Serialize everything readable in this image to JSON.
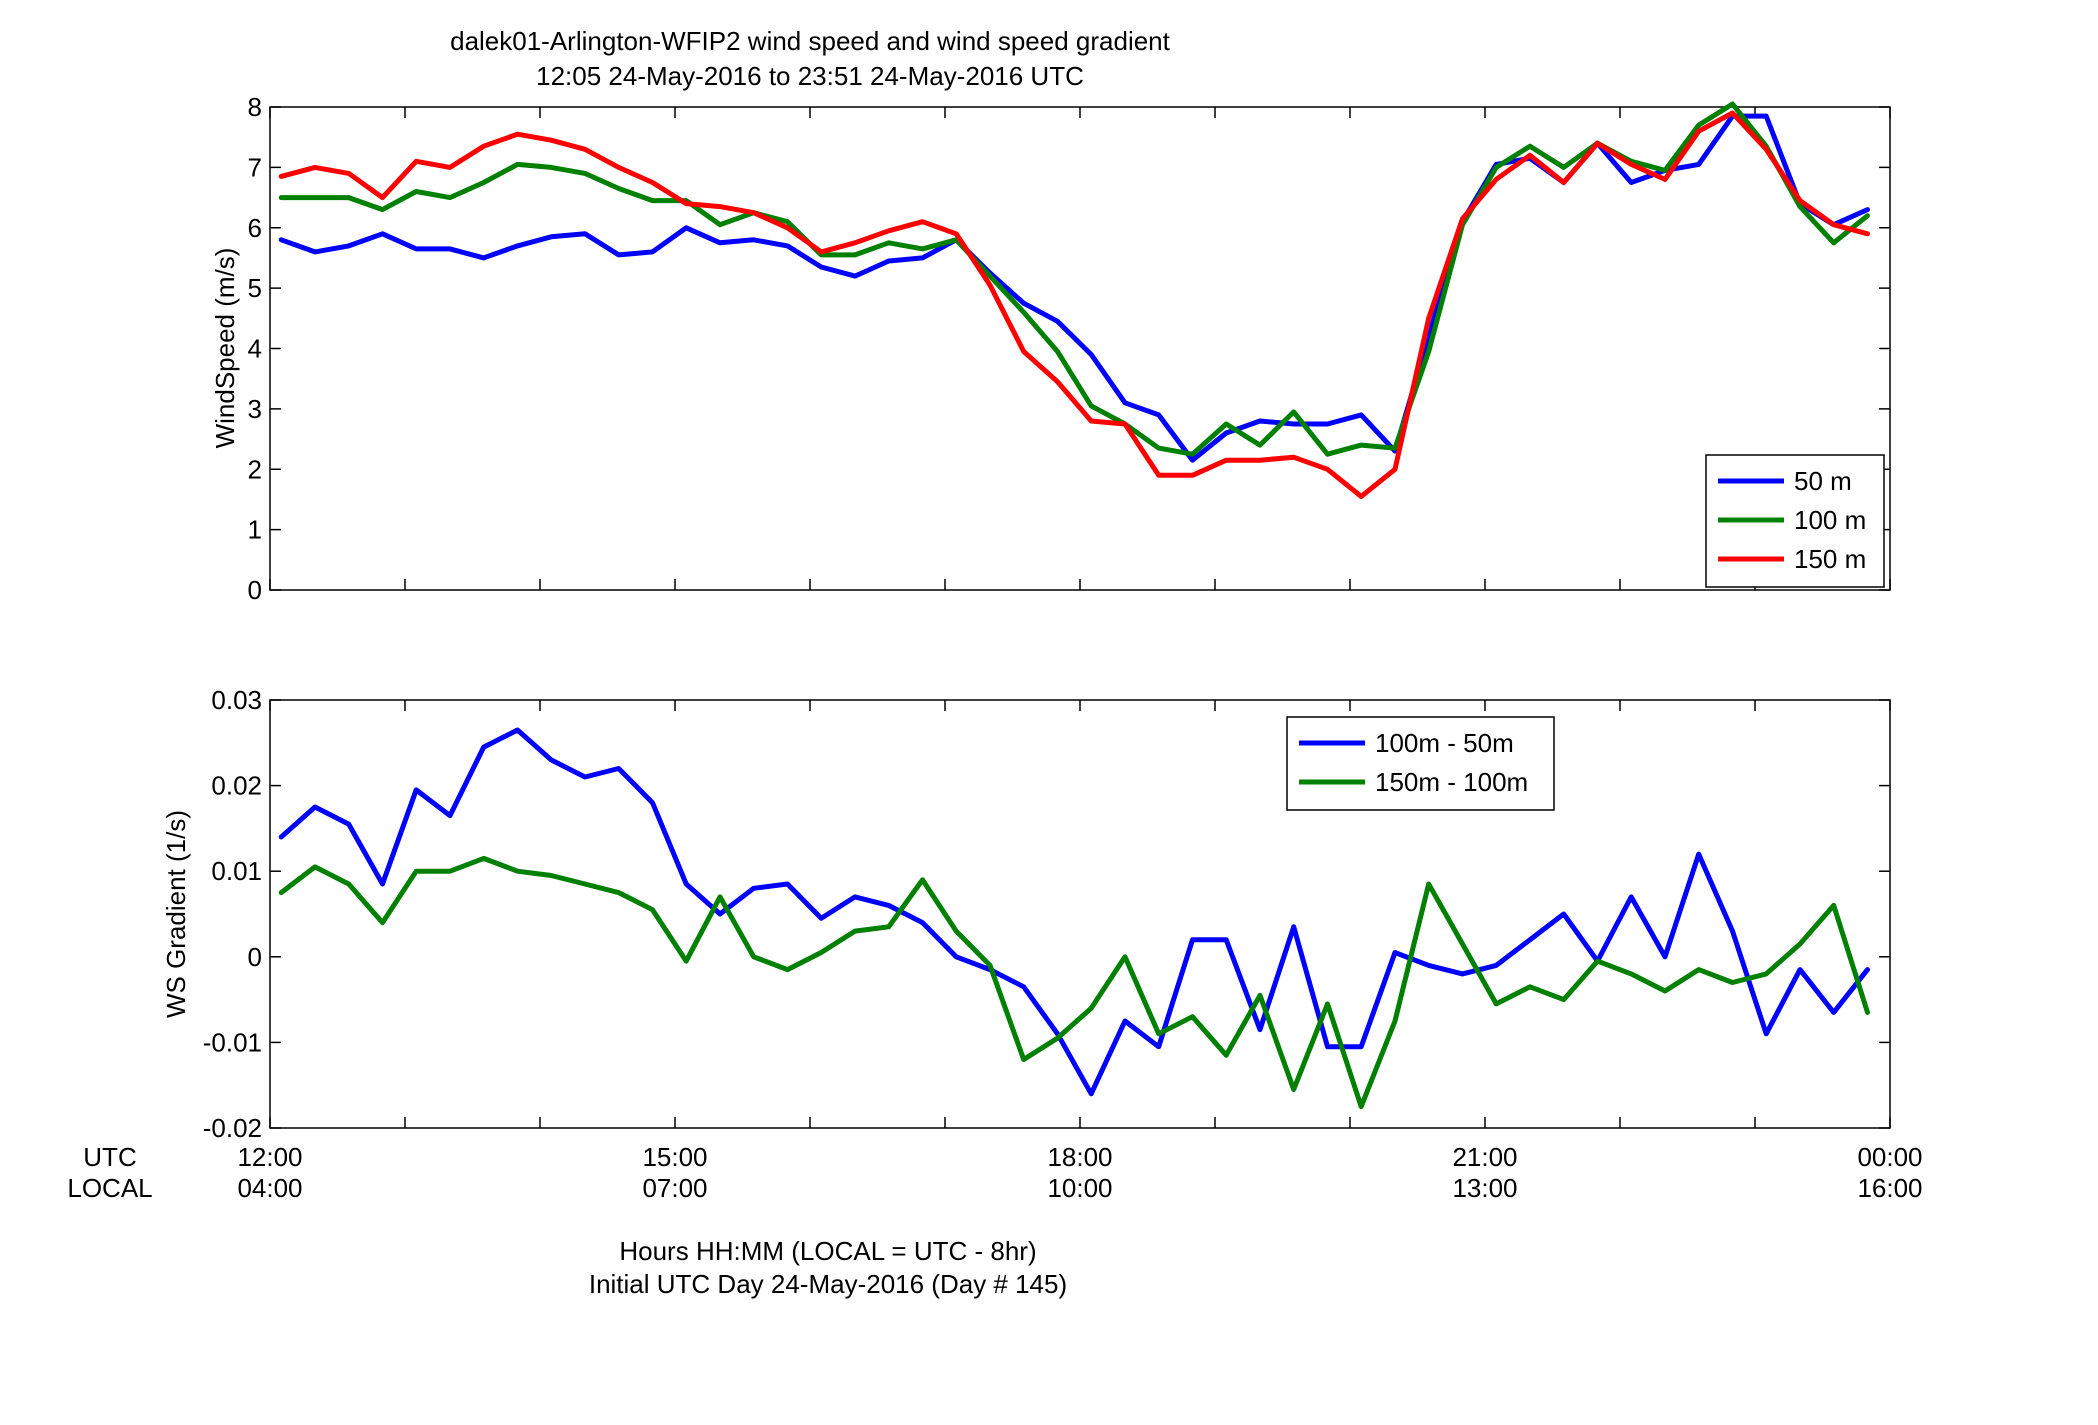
{
  "figure": {
    "title_line1": "dalek01-Arlington-WFIP2  wind speed and wind speed gradient",
    "title_line2": "12:05 24-May-2016 to 23:51 24-May-2016  UTC",
    "utc_label": "UTC",
    "local_label": "LOCAL",
    "utc_ticks": [
      "12:00",
      "15:00",
      "18:00",
      "21:00",
      "00:00"
    ],
    "local_ticks": [
      "04:00",
      "07:00",
      "10:00",
      "13:00",
      "16:00"
    ],
    "xlabel_line1": "Hours HH:MM  (LOCAL = UTC - 8hr)",
    "xlabel_line2": "Initial UTC Day 24-May-2016 (Day # 145)"
  },
  "chart_data": [
    {
      "type": "line",
      "title": "",
      "xlabel": "",
      "ylabel": "WindSpeed (m/s)",
      "xlim": [
        12,
        24
      ],
      "ylim": [
        0,
        8
      ],
      "yticks": [
        0,
        1,
        2,
        3,
        4,
        5,
        6,
        7,
        8
      ],
      "ytick_labels": [
        "0",
        "1",
        "2",
        "3",
        "4",
        "5",
        "6",
        "7",
        "8"
      ],
      "x_start_hour": 12.083,
      "x_step_hours": 0.25,
      "legend_position": "bottom-right",
      "series": [
        {
          "name": "50 m",
          "color": "#0000ff",
          "values": [
            5.8,
            5.6,
            5.7,
            5.9,
            5.65,
            5.65,
            5.5,
            5.7,
            5.85,
            5.9,
            5.55,
            5.6,
            6.0,
            5.75,
            5.8,
            5.7,
            5.35,
            5.2,
            5.45,
            5.5,
            5.8,
            5.25,
            4.75,
            4.45,
            3.9,
            3.1,
            2.9,
            2.15,
            2.6,
            2.8,
            2.75,
            2.75,
            2.9,
            2.3,
            4.2,
            6.1,
            7.05,
            7.15,
            6.75,
            7.4,
            6.75,
            6.95,
            7.05,
            7.85,
            7.85,
            6.4,
            6.05,
            6.3
          ]
        },
        {
          "name": "100 m",
          "color": "#008000",
          "values": [
            6.5,
            6.5,
            6.5,
            6.3,
            6.6,
            6.5,
            6.75,
            7.05,
            7.0,
            6.9,
            6.65,
            6.45,
            6.45,
            6.05,
            6.25,
            6.1,
            5.55,
            5.55,
            5.75,
            5.65,
            5.8,
            5.2,
            4.6,
            3.95,
            3.05,
            2.75,
            2.35,
            2.25,
            2.75,
            2.4,
            2.95,
            2.25,
            2.4,
            2.35,
            3.95,
            6.05,
            7.0,
            7.35,
            7.0,
            7.4,
            7.1,
            6.95,
            7.7,
            8.05,
            7.35,
            6.35,
            5.75,
            6.2
          ]
        },
        {
          "name": "150 m",
          "color": "#ff0000",
          "values": [
            6.85,
            7.0,
            6.9,
            6.5,
            7.1,
            7.0,
            7.35,
            7.55,
            7.45,
            7.3,
            7.0,
            6.75,
            6.4,
            6.35,
            6.25,
            6.0,
            5.6,
            5.75,
            5.95,
            6.1,
            5.9,
            5.05,
            3.95,
            3.45,
            2.8,
            2.75,
            1.9,
            1.9,
            2.15,
            2.15,
            2.2,
            2.0,
            1.55,
            2.0,
            4.5,
            6.15,
            6.8,
            7.2,
            6.75,
            7.4,
            7.05,
            6.8,
            7.6,
            7.9,
            7.3,
            6.45,
            6.05,
            5.9
          ]
        }
      ]
    },
    {
      "type": "line",
      "title": "",
      "xlabel": "",
      "ylabel": "WS Gradient (1/s)",
      "xlim": [
        12,
        24
      ],
      "ylim": [
        -0.02,
        0.03
      ],
      "yticks": [
        -0.02,
        -0.01,
        0,
        0.01,
        0.02,
        0.03
      ],
      "ytick_labels": [
        "-0.02",
        "-0.01",
        "0",
        "0.01",
        "0.02",
        "0.03"
      ],
      "x_start_hour": 12.083,
      "x_step_hours": 0.25,
      "legend_position": "top-center",
      "series": [
        {
          "name": "100m - 50m",
          "color": "#0000ff",
          "values": [
            0.014,
            0.0175,
            0.0155,
            0.0085,
            0.0195,
            0.0165,
            0.0245,
            0.0265,
            0.023,
            0.021,
            0.022,
            0.018,
            0.0085,
            0.005,
            0.008,
            0.0085,
            0.0045,
            0.007,
            0.006,
            0.004,
            0.0,
            -0.0015,
            -0.0035,
            -0.009,
            -0.016,
            -0.0075,
            -0.0105,
            0.002,
            0.002,
            -0.0085,
            0.0035,
            -0.0105,
            -0.0105,
            0.0005,
            -0.001,
            -0.002,
            -0.001,
            0.002,
            0.005,
            -0.0005,
            0.007,
            0.0,
            0.012,
            0.003,
            -0.009,
            -0.0015,
            -0.0065,
            -0.0015
          ]
        },
        {
          "name": "150m - 100m",
          "color": "#008000",
          "values": [
            0.0075,
            0.0105,
            0.0085,
            0.004,
            0.01,
            0.01,
            0.0115,
            0.01,
            0.0095,
            0.0085,
            0.0075,
            0.0055,
            -0.0005,
            0.007,
            0.0,
            -0.0015,
            0.0005,
            0.003,
            0.0035,
            0.009,
            0.003,
            -0.001,
            -0.012,
            -0.0095,
            -0.006,
            0.0,
            -0.009,
            -0.007,
            -0.0115,
            -0.0045,
            -0.0155,
            -0.0055,
            -0.0175,
            -0.0075,
            0.0085,
            0.0015,
            -0.0055,
            -0.0035,
            -0.005,
            -0.0005,
            -0.002,
            -0.004,
            -0.0015,
            -0.003,
            -0.002,
            0.0015,
            0.006,
            -0.0065
          ]
        }
      ]
    }
  ]
}
